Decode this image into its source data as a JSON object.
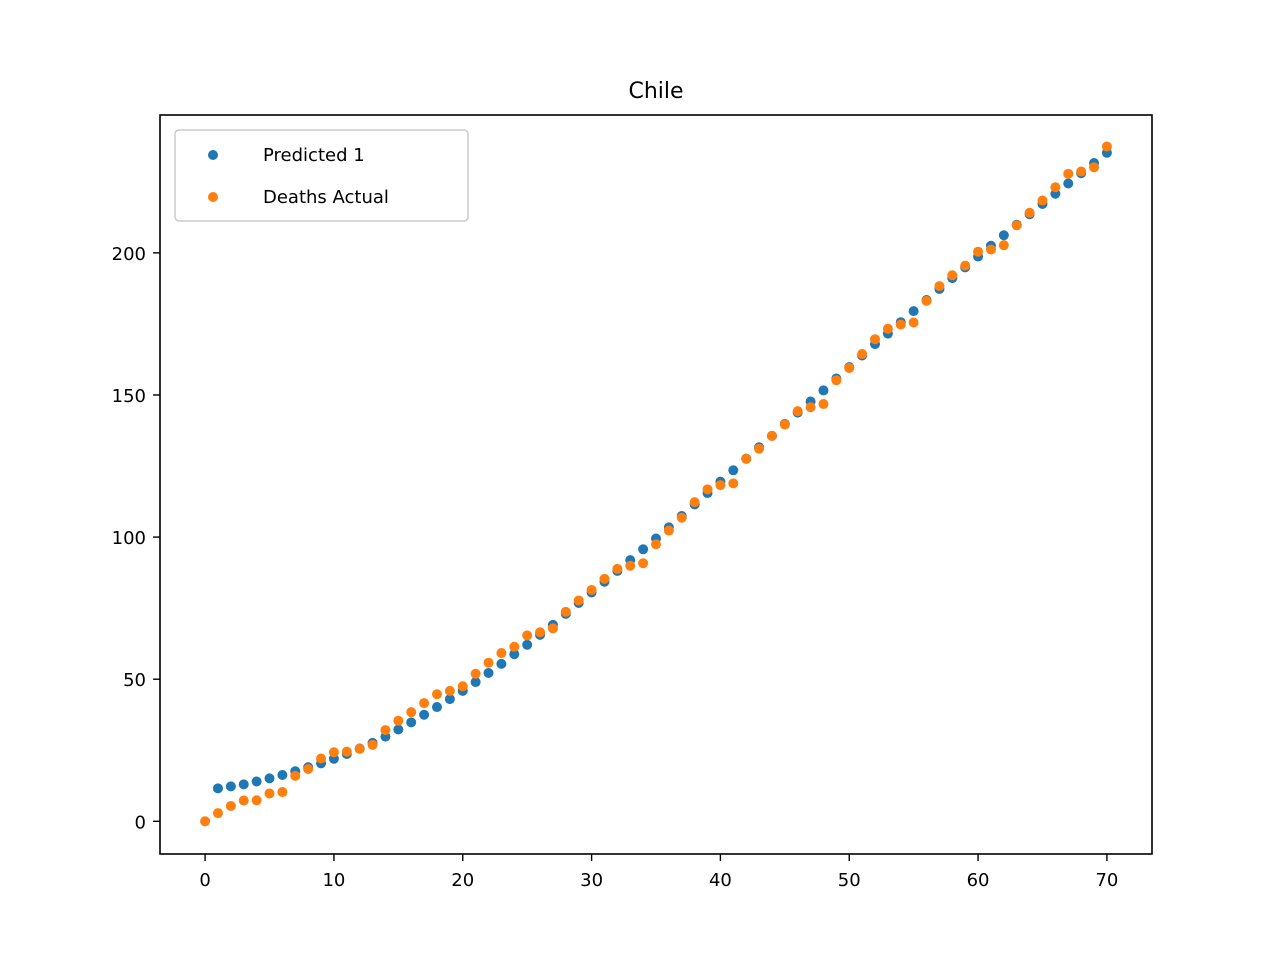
{
  "chart_data": {
    "type": "scatter",
    "title": "Chile",
    "xlabel": "",
    "ylabel": "",
    "xlim": [
      -3.5,
      73.5
    ],
    "ylim": [
      -11.5,
      248.5
    ],
    "x_ticks": [
      0,
      10,
      20,
      30,
      40,
      50,
      60,
      70
    ],
    "y_ticks": [
      0,
      50,
      100,
      150,
      200
    ],
    "grid": false,
    "legend_position": "top-left",
    "series": [
      {
        "name": "Predicted 1",
        "color": "#1f77b4",
        "points": [
          [
            1,
            11.6
          ],
          [
            2,
            12.3
          ],
          [
            3,
            13.0
          ],
          [
            4,
            14.0
          ],
          [
            5,
            15.1
          ],
          [
            6,
            16.3
          ],
          [
            7,
            17.6
          ],
          [
            8,
            19.0
          ],
          [
            9,
            20.4
          ],
          [
            10,
            22.0
          ],
          [
            11,
            23.7
          ],
          [
            12,
            25.6
          ],
          [
            13,
            27.6
          ],
          [
            14,
            29.8
          ],
          [
            15,
            32.3
          ],
          [
            16,
            34.8
          ],
          [
            17,
            37.5
          ],
          [
            18,
            40.2
          ],
          [
            19,
            43.0
          ],
          [
            20,
            45.9
          ],
          [
            21,
            49.0
          ],
          [
            22,
            52.2
          ],
          [
            23,
            55.4
          ],
          [
            24,
            58.8
          ],
          [
            25,
            62.1
          ],
          [
            26,
            65.6
          ],
          [
            27,
            69.1
          ],
          [
            28,
            73.0
          ],
          [
            29,
            76.8
          ],
          [
            30,
            80.5
          ],
          [
            31,
            84.3
          ],
          [
            32,
            88.1
          ],
          [
            33,
            91.9
          ],
          [
            34,
            95.7
          ],
          [
            35,
            99.5
          ],
          [
            36,
            103.4
          ],
          [
            37,
            107.4
          ],
          [
            38,
            111.5
          ],
          [
            39,
            115.5
          ],
          [
            40,
            119.5
          ],
          [
            41,
            123.5
          ],
          [
            42,
            127.6
          ],
          [
            43,
            131.6
          ],
          [
            44,
            135.6
          ],
          [
            45,
            139.8
          ],
          [
            46,
            143.8
          ],
          [
            47,
            147.7
          ],
          [
            48,
            151.6
          ],
          [
            49,
            155.8
          ],
          [
            50,
            159.8
          ],
          [
            51,
            163.9
          ],
          [
            52,
            167.9
          ],
          [
            53,
            171.6
          ],
          [
            54,
            175.6
          ],
          [
            55,
            179.5
          ],
          [
            56,
            183.4
          ],
          [
            57,
            187.3
          ],
          [
            58,
            191.1
          ],
          [
            59,
            194.9
          ],
          [
            60,
            198.7
          ],
          [
            61,
            202.5
          ],
          [
            62,
            206.2
          ],
          [
            63,
            209.9
          ],
          [
            64,
            213.6
          ],
          [
            65,
            217.2
          ],
          [
            66,
            220.8
          ],
          [
            67,
            224.4
          ],
          [
            68,
            228.0
          ],
          [
            69,
            231.6
          ],
          [
            70,
            235.2
          ]
        ]
      },
      {
        "name": "Deaths Actual",
        "color": "#ff7f0e",
        "points": [
          [
            0,
            0
          ],
          [
            1,
            2.9
          ],
          [
            2,
            5.4
          ],
          [
            3,
            7.3
          ],
          [
            4,
            7.4
          ],
          [
            5,
            9.8
          ],
          [
            6,
            10.3
          ],
          [
            7,
            16.0
          ],
          [
            8,
            18.4
          ],
          [
            9,
            22.1
          ],
          [
            10,
            24.3
          ],
          [
            11,
            24.5
          ],
          [
            12,
            25.5
          ],
          [
            13,
            26.9
          ],
          [
            14,
            32.1
          ],
          [
            15,
            35.4
          ],
          [
            16,
            38.4
          ],
          [
            17,
            41.6
          ],
          [
            18,
            44.7
          ],
          [
            19,
            45.9
          ],
          [
            20,
            47.5
          ],
          [
            21,
            51.9
          ],
          [
            22,
            55.8
          ],
          [
            23,
            59.2
          ],
          [
            24,
            61.4
          ],
          [
            25,
            65.4
          ],
          [
            26,
            66.5
          ],
          [
            27,
            67.9
          ],
          [
            28,
            73.7
          ],
          [
            29,
            77.7
          ],
          [
            30,
            81.4
          ],
          [
            31,
            85.3
          ],
          [
            32,
            88.8
          ],
          [
            33,
            89.9
          ],
          [
            34,
            90.8
          ],
          [
            35,
            97.5
          ],
          [
            36,
            102.3
          ],
          [
            37,
            106.8
          ],
          [
            38,
            112.3
          ],
          [
            39,
            116.8
          ],
          [
            40,
            118.3
          ],
          [
            41,
            118.9
          ],
          [
            42,
            127.5
          ],
          [
            43,
            131.1
          ],
          [
            44,
            135.6
          ],
          [
            45,
            139.6
          ],
          [
            46,
            144.3
          ],
          [
            47,
            145.7
          ],
          [
            48,
            146.8
          ],
          [
            49,
            155.2
          ],
          [
            50,
            159.5
          ],
          [
            51,
            164.4
          ],
          [
            52,
            169.6
          ],
          [
            53,
            173.3
          ],
          [
            54,
            174.8
          ],
          [
            55,
            175.5
          ],
          [
            56,
            183.1
          ],
          [
            57,
            188.3
          ],
          [
            58,
            192.1
          ],
          [
            59,
            195.5
          ],
          [
            60,
            200.4
          ],
          [
            61,
            201.2
          ],
          [
            62,
            202.7
          ],
          [
            63,
            209.7
          ],
          [
            64,
            214.1
          ],
          [
            65,
            218.4
          ],
          [
            66,
            223.1
          ],
          [
            67,
            227.8
          ],
          [
            68,
            228.6
          ],
          [
            69,
            230.1
          ],
          [
            70,
            237.4
          ]
        ]
      }
    ]
  }
}
